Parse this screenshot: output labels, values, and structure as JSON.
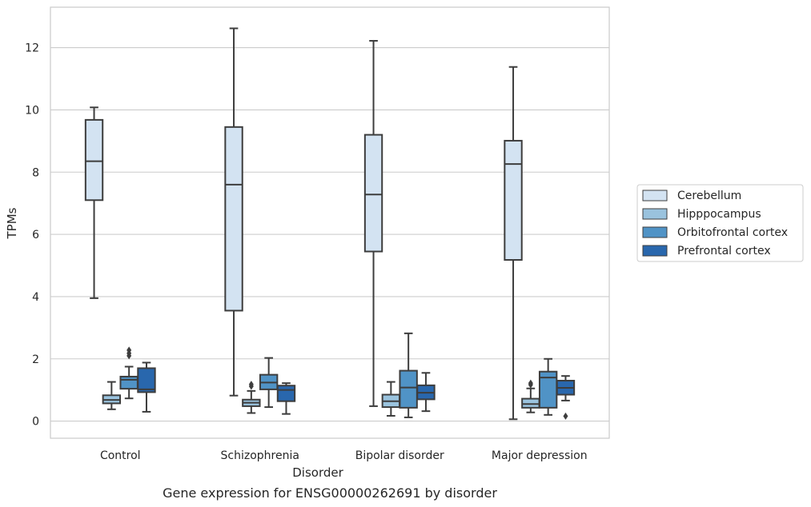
{
  "chart_data": {
    "type": "box",
    "caption": "Gene expression for ENSG00000262691 by disorder",
    "xlabel": "Disorder",
    "ylabel": "TPMs",
    "ylim": [
      -0.55,
      13.3
    ],
    "yticks": [
      0,
      2,
      4,
      6,
      8,
      10,
      12
    ],
    "grid": true,
    "legend_position": "right",
    "categories": [
      "Control",
      "Schizophrenia",
      "Bipolar disorder",
      "Major depression"
    ],
    "series": [
      {
        "name": "Cerebellum",
        "color": "#d3e3f2",
        "boxes": [
          {
            "min": 3.95,
            "q1": 7.1,
            "median": 8.35,
            "q3": 9.68,
            "max": 10.08,
            "outliers": []
          },
          {
            "min": 0.82,
            "q1": 3.55,
            "median": 7.6,
            "q3": 9.45,
            "max": 12.62,
            "outliers": []
          },
          {
            "min": 0.48,
            "q1": 5.45,
            "median": 7.28,
            "q3": 9.2,
            "max": 12.22,
            "outliers": []
          },
          {
            "min": 0.06,
            "q1": 5.18,
            "median": 8.26,
            "q3": 9.01,
            "max": 11.38,
            "outliers": []
          }
        ]
      },
      {
        "name": "Hipppocampus",
        "color": "#9ac3de",
        "boxes": [
          {
            "min": 0.38,
            "q1": 0.57,
            "median": 0.68,
            "q3": 0.83,
            "max": 1.26,
            "outliers": []
          },
          {
            "min": 0.26,
            "q1": 0.48,
            "median": 0.59,
            "q3": 0.69,
            "max": 0.97,
            "outliers": [
              1.12,
              1.18
            ]
          },
          {
            "min": 0.17,
            "q1": 0.45,
            "median": 0.64,
            "q3": 0.85,
            "max": 1.26,
            "outliers": []
          },
          {
            "min": 0.28,
            "q1": 0.43,
            "median": 0.55,
            "q3": 0.72,
            "max": 1.05,
            "outliers": [
              1.17,
              1.22
            ]
          }
        ]
      },
      {
        "name": "Orbitofrontal cortex",
        "color": "#5093c6",
        "boxes": [
          {
            "min": 0.73,
            "q1": 1.04,
            "median": 1.33,
            "q3": 1.43,
            "max": 1.75,
            "outliers": [
              2.1,
              2.18,
              2.28
            ]
          },
          {
            "min": 0.45,
            "q1": 1.02,
            "median": 1.24,
            "q3": 1.49,
            "max": 2.03,
            "outliers": []
          },
          {
            "min": 0.12,
            "q1": 0.43,
            "median": 1.08,
            "q3": 1.62,
            "max": 2.82,
            "outliers": []
          },
          {
            "min": 0.2,
            "q1": 0.43,
            "median": 1.4,
            "q3": 1.59,
            "max": 2.0,
            "outliers": []
          }
        ]
      },
      {
        "name": "Prefrontal cortex",
        "color": "#2967ad",
        "boxes": [
          {
            "min": 0.3,
            "q1": 0.93,
            "median": 1.02,
            "q3": 1.7,
            "max": 1.88,
            "outliers": []
          },
          {
            "min": 0.23,
            "q1": 0.64,
            "median": 1.0,
            "q3": 1.14,
            "max": 1.22,
            "outliers": []
          },
          {
            "min": 0.32,
            "q1": 0.7,
            "median": 0.91,
            "q3": 1.15,
            "max": 1.55,
            "outliers": []
          },
          {
            "min": 0.66,
            "q1": 0.85,
            "median": 1.07,
            "q3": 1.3,
            "max": 1.45,
            "outliers": [
              0.16
            ]
          }
        ]
      }
    ]
  }
}
